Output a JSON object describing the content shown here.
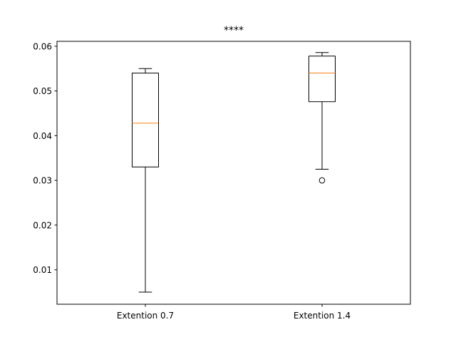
{
  "chart_data": {
    "type": "box",
    "title": "****",
    "xlabel": "",
    "ylabel": "",
    "categories": [
      "Extention 0.7",
      "Extention 1.4"
    ],
    "ylim": [
      0.0023,
      0.0611
    ],
    "yticks": [
      0.01,
      0.02,
      0.03,
      0.04,
      0.05,
      0.06
    ],
    "ytick_labels": [
      "0.01",
      "0.02",
      "0.03",
      "0.04",
      "0.05",
      "0.06"
    ],
    "grid": false,
    "boxes": [
      {
        "label": "Extention 0.7",
        "whisker_low": 0.005,
        "q1": 0.033,
        "median": 0.0428,
        "q3": 0.054,
        "whisker_high": 0.055,
        "outliers": []
      },
      {
        "label": "Extention 1.4",
        "whisker_low": 0.0325,
        "q1": 0.0476,
        "median": 0.054,
        "q3": 0.0578,
        "whisker_high": 0.0586,
        "outliers": [
          0.03
        ]
      }
    ],
    "colors": {
      "box": "#000000",
      "median": "#ff7f0e",
      "outlier": "#000000"
    }
  }
}
